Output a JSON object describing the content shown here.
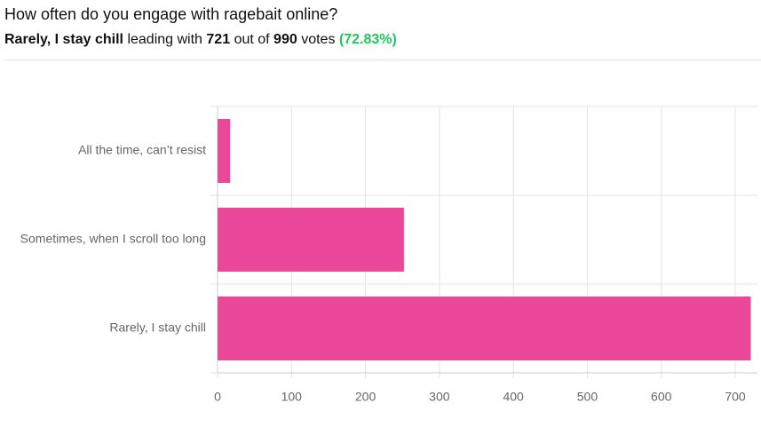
{
  "title": "How often do you engage with ragebait online?",
  "subtitle": {
    "leading_with": "leading with",
    "out_of": "out of",
    "total_votes": 990,
    "votes_word": "votes",
    "percent": "(72.83%)"
  },
  "chart_data": {
    "type": "bar",
    "orientation": "horizontal",
    "categories": [
      "All the time, can’t resist",
      "Sometimes, when I scroll too long",
      "Rarely, I stay chill"
    ],
    "values": [
      17,
      252,
      721
    ],
    "color": "#ec4899",
    "xlim": [
      0,
      730
    ],
    "xticks": [
      0,
      100,
      200,
      300,
      400,
      500,
      600,
      700
    ],
    "grid": true
  }
}
